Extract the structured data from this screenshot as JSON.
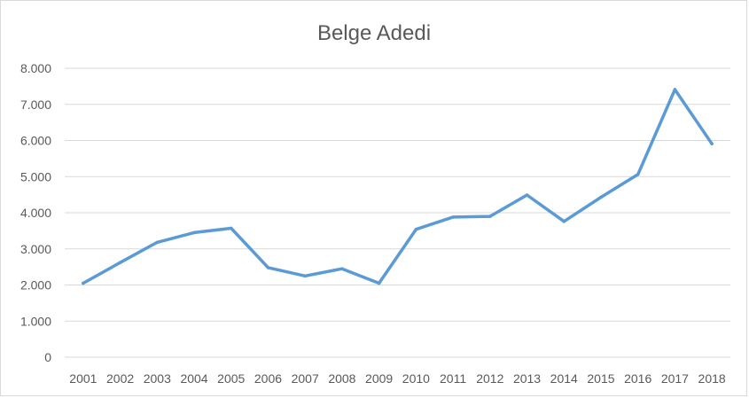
{
  "chart_data": {
    "type": "line",
    "title": "Belge Adedi",
    "xlabel": "",
    "ylabel": "",
    "categories": [
      "2001",
      "2002",
      "2003",
      "2004",
      "2005",
      "2006",
      "2007",
      "2008",
      "2009",
      "2010",
      "2011",
      "2012",
      "2013",
      "2014",
      "2015",
      "2016",
      "2017",
      "2018"
    ],
    "series": [
      {
        "values": [
          2050,
          2620,
          3180,
          3450,
          3570,
          2480,
          2250,
          2450,
          2050,
          3540,
          3880,
          3900,
          4490,
          3760,
          4430,
          5060,
          7410,
          5910
        ],
        "color": "#5b9bd5"
      }
    ],
    "ylim": [
      0,
      8000
    ],
    "yticks": [
      0,
      1000,
      2000,
      3000,
      4000,
      5000,
      6000,
      7000,
      8000
    ],
    "ytick_labels": [
      "0",
      "1.000",
      "2.000",
      "3.000",
      "4.000",
      "5.000",
      "6.000",
      "7.000",
      "8.000"
    ],
    "grid": true,
    "legend": "none"
  }
}
